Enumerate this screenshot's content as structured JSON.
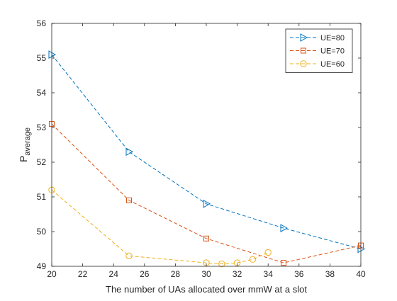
{
  "chart_data": {
    "type": "line",
    "title": "",
    "xlabel": "The number of UAs allocated over mmW at a slot",
    "ylabel_main": "P",
    "ylabel_sub": "average",
    "xlim": [
      20,
      40
    ],
    "ylim": [
      49,
      56
    ],
    "xticks": [
      20,
      22,
      24,
      26,
      28,
      30,
      32,
      34,
      36,
      38,
      40
    ],
    "yticks": [
      49,
      50,
      51,
      52,
      53,
      54,
      55,
      56
    ],
    "grid": false,
    "legend_position": "top-right",
    "series": [
      {
        "name": "UE=80",
        "color": "#0072BD",
        "marker": "triangle-right",
        "line_style": "dashed",
        "x": [
          20,
          25,
          30,
          35,
          40
        ],
        "y": [
          55.1,
          52.3,
          50.8,
          50.1,
          49.5
        ]
      },
      {
        "name": "UE=70",
        "color": "#D95319",
        "marker": "square",
        "line_style": "dashed",
        "x": [
          20,
          25,
          30,
          35,
          40
        ],
        "y": [
          53.1,
          50.9,
          49.8,
          49.1,
          49.6
        ]
      },
      {
        "name": "UE=60",
        "color": "#EDB120",
        "marker": "circle",
        "line_style": "dashed",
        "x": [
          20,
          25,
          30,
          31,
          32,
          33,
          34
        ],
        "y": [
          51.2,
          49.3,
          49.1,
          49.07,
          49.1,
          49.2,
          49.4
        ]
      }
    ]
  }
}
